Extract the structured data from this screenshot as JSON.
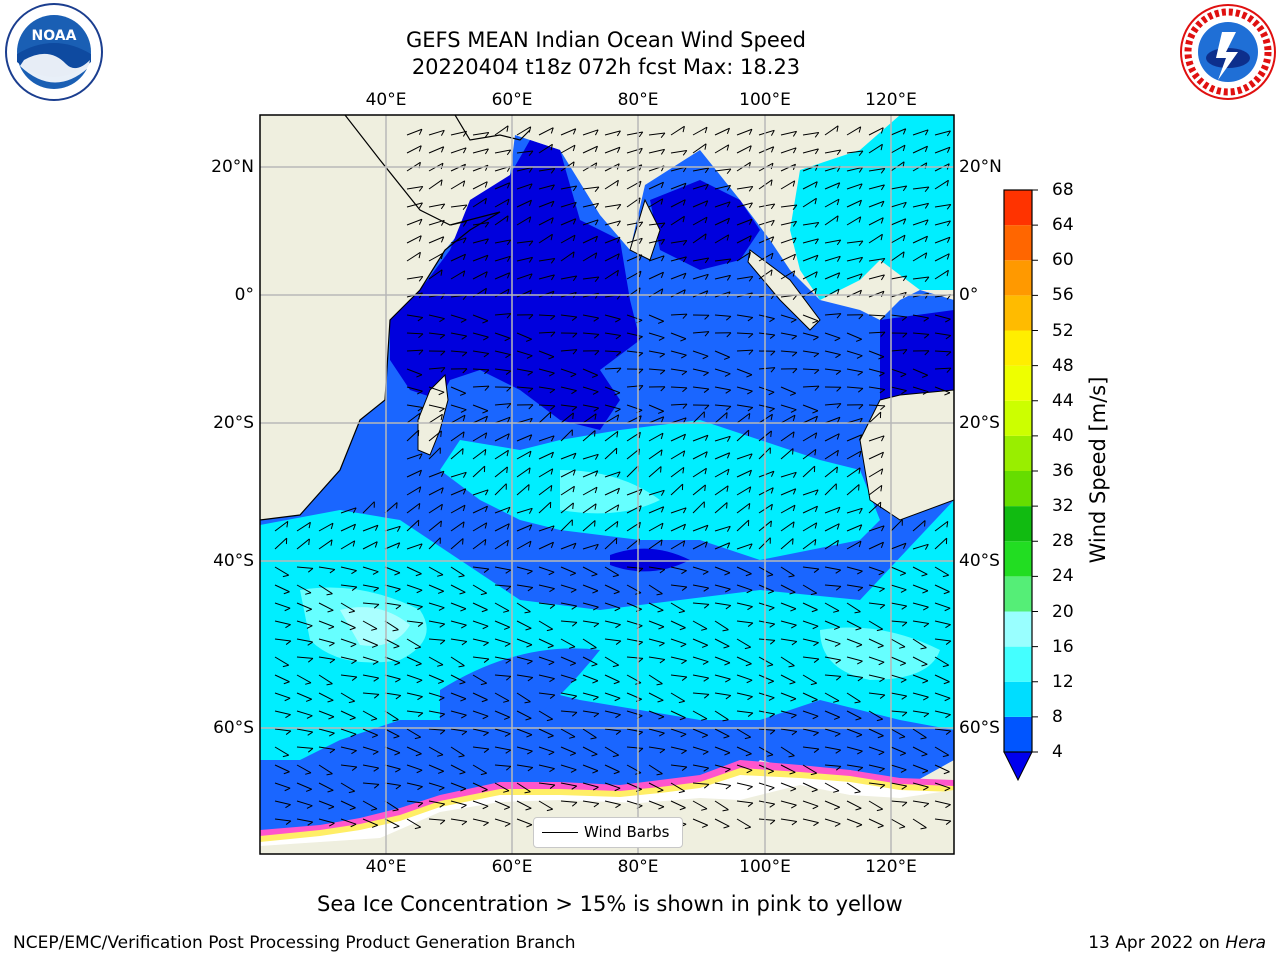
{
  "title_line1": "GEFS MEAN Indian Ocean Wind Speed",
  "title_line2": "20220404 t18z 072h fcst   Max: 18.23",
  "lon_ticks": [
    "40°E",
    "60°E",
    "80°E",
    "100°E",
    "120°E"
  ],
  "lat_ticks": [
    "20°N",
    "0°",
    "20°S",
    "40°S",
    "60°S"
  ],
  "colorbar": {
    "title": "Wind Speed [m/s]",
    "labels": [
      "4",
      "8",
      "12",
      "16",
      "20",
      "24",
      "28",
      "32",
      "36",
      "40",
      "44",
      "48",
      "52",
      "56",
      "60",
      "64",
      "68"
    ],
    "colors": [
      "#0055ff",
      "#00ddff",
      "#44ffff",
      "#99ffff",
      "#55ee77",
      "#22dd22",
      "#11bb11",
      "#66dd00",
      "#99ee00",
      "#ccff00",
      "#eeff00",
      "#ffee00",
      "#ffbb00",
      "#ff9900",
      "#ff6600",
      "#ff3300"
    ],
    "under_color": "#0000ee"
  },
  "legend": {
    "label": "Wind Barbs"
  },
  "footnote": "Sea Ice Concentration > 15% is shown in pink to yellow",
  "credit": "NCEP/EMC/Verification Post Processing Product Generation Branch",
  "date_text": "13 Apr 2022 on ",
  "date_host": "Hera",
  "logos": {
    "left": "NOAA",
    "right": "NATIONAL WEATHER SERVICE"
  },
  "colors": {
    "land": "#efefdf",
    "calm_dark": "#0000dd",
    "blue": "#1a66ff",
    "mid_blue": "#1a88ff",
    "cyan": "#00eeff",
    "light_cyan": "#66ffff",
    "pale_cyan": "#aaffff",
    "ice_pink": "#ff55cc",
    "ice_yellow": "#ffee66"
  }
}
